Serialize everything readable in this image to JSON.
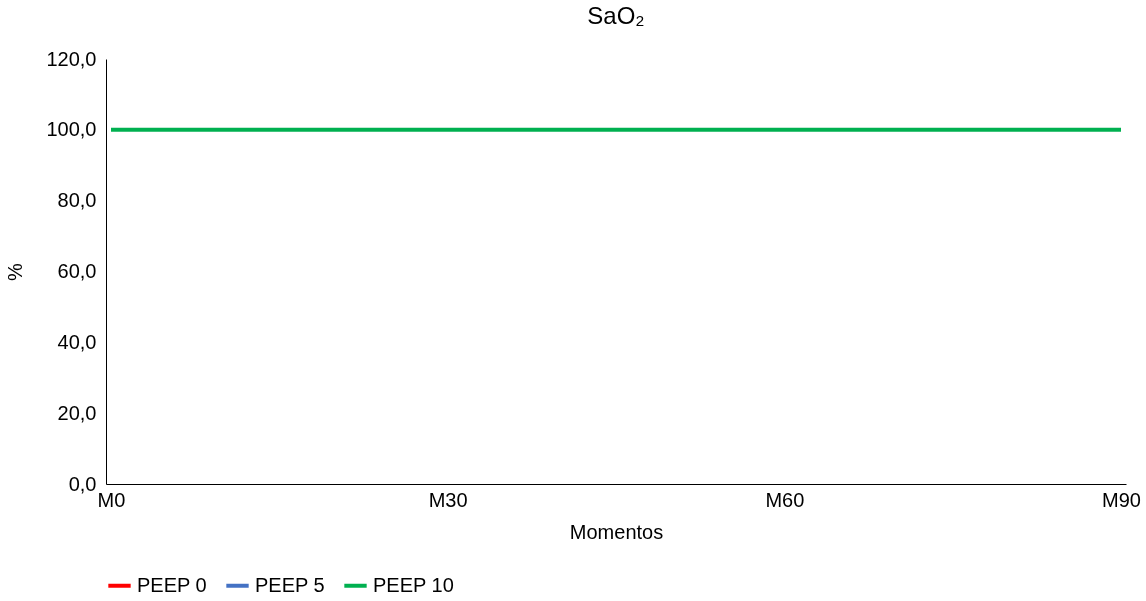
{
  "chart_data": {
    "type": "line",
    "title": "SaO₂",
    "xlabel": "Momentos",
    "ylabel": "%",
    "categories": [
      "M0",
      "M30",
      "M60",
      "M90"
    ],
    "ylim": [
      0,
      120
    ],
    "yticks": [
      {
        "value": 0,
        "label": "0,0"
      },
      {
        "value": 20,
        "label": "20,0"
      },
      {
        "value": 40,
        "label": "40,0"
      },
      {
        "value": 60,
        "label": "60,0"
      },
      {
        "value": 80,
        "label": "80,0"
      },
      {
        "value": 100,
        "label": "100,0"
      },
      {
        "value": 120,
        "label": "120,0"
      }
    ],
    "series": [
      {
        "name": "PEEP 0",
        "color": "#ff0000",
        "values": [
          null,
          null,
          null,
          null
        ]
      },
      {
        "name": "PEEP 5",
        "color": "#4472c4",
        "values": [
          null,
          null,
          null,
          null
        ]
      },
      {
        "name": "PEEP 10",
        "color": "#00b050",
        "values": [
          100,
          100,
          100,
          100
        ]
      }
    ],
    "grid": false,
    "legend": "bottom",
    "marker": "none",
    "line_style": "solid"
  }
}
